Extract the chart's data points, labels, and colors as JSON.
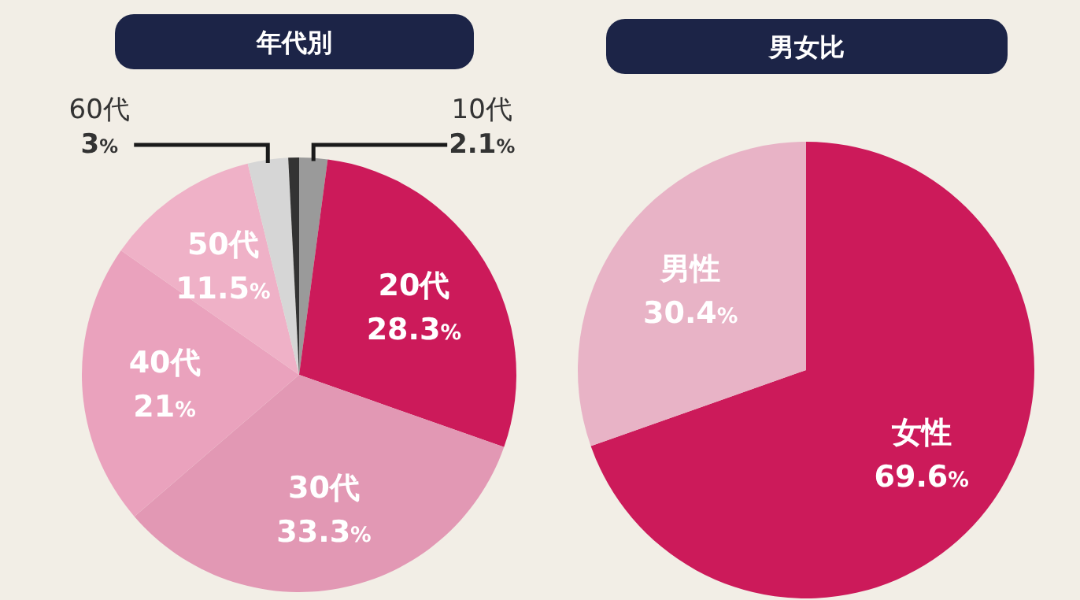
{
  "chart_data": [
    {
      "type": "pie",
      "title": "年代別",
      "categories": [
        "10代",
        "20代",
        "30代",
        "40代",
        "50代",
        "60代",
        null
      ],
      "values": [
        2.1,
        28.3,
        33.3,
        21,
        11.5,
        3,
        0.8
      ],
      "colors": [
        "#9a9a9a",
        "#cc1a5a",
        "#e298b4",
        "#eaa2bd",
        "#efb1c7",
        "#d6d6d6",
        "#333333"
      ],
      "value_labels": [
        "2.1%",
        "28.3%",
        "33.3%",
        "21%",
        "11.5%",
        "3%",
        null
      ],
      "data_labels": false
    },
    {
      "type": "pie",
      "title": "男女比",
      "categories": [
        "女性",
        "男性"
      ],
      "values": [
        69.6,
        30.4
      ],
      "colors": [
        "#cc1a5a",
        "#e8b3c6"
      ],
      "value_labels": [
        "69.6%",
        "30.4%"
      ]
    }
  ]
}
